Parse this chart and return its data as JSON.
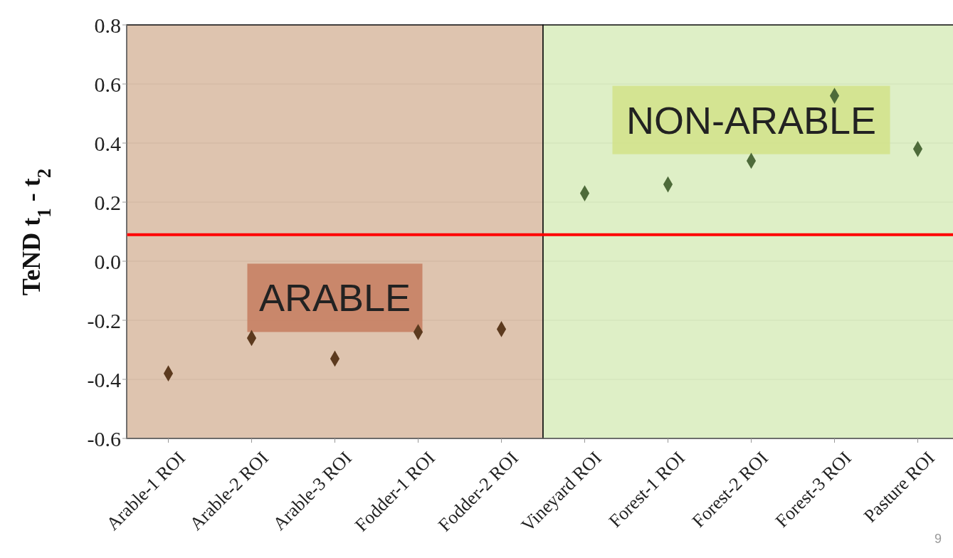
{
  "chart_data": {
    "type": "scatter",
    "ylabel": "TeND  t$_{1}$ - t$_{2}$",
    "categories": [
      "Arable-1 ROI",
      "Arable-2 ROI",
      "Arable-3 ROI",
      "Fodder-1 ROI",
      "Fodder-2 ROI",
      "Vineyard ROI",
      "Forest-1 ROI",
      "Forest-2 ROI",
      "Forest-3 ROI",
      "Pasture ROI"
    ],
    "values": [
      -0.38,
      -0.26,
      -0.33,
      -0.24,
      -0.23,
      0.23,
      0.26,
      0.34,
      0.56,
      0.38
    ],
    "colors": [
      "#5c3a1e",
      "#5c3a1e",
      "#5c3a1e",
      "#5c3a1e",
      "#5c3a1e",
      "#4e6b3a",
      "#4e6b3a",
      "#4e6b3a",
      "#4e6b3a",
      "#4e6b3a"
    ],
    "marker": "diamond",
    "ylim": [
      -0.6,
      0.8
    ],
    "yticks": [
      {
        "value": -0.6,
        "label": "-0.6"
      },
      {
        "value": -0.4,
        "label": "-0.4"
      },
      {
        "value": -0.2,
        "label": "-0.2"
      },
      {
        "value": 0,
        "label": "0.0"
      },
      {
        "value": 0.2,
        "label": "0.2"
      },
      {
        "value": 0.4,
        "label": "0.4"
      },
      {
        "value": 0.6,
        "label": "0.6"
      },
      {
        "value": 0.8,
        "label": "0.8"
      }
    ],
    "grid": "y",
    "legend": false,
    "ref_lines": [
      {
        "axis": "y",
        "value": 0.09,
        "color": "#ff0000"
      }
    ],
    "bands": [
      {
        "axis": "x",
        "from": "Arable-1 ROI",
        "to": "Fodder-2 ROI",
        "label": "ARABLE",
        "color": "#d6b59b"
      },
      {
        "axis": "x",
        "from": "Vineyard ROI",
        "to": "Pasture ROI",
        "label": "NON-ARABLE",
        "color": "#d6ebb8"
      }
    ],
    "annotations": [
      "9"
    ]
  }
}
